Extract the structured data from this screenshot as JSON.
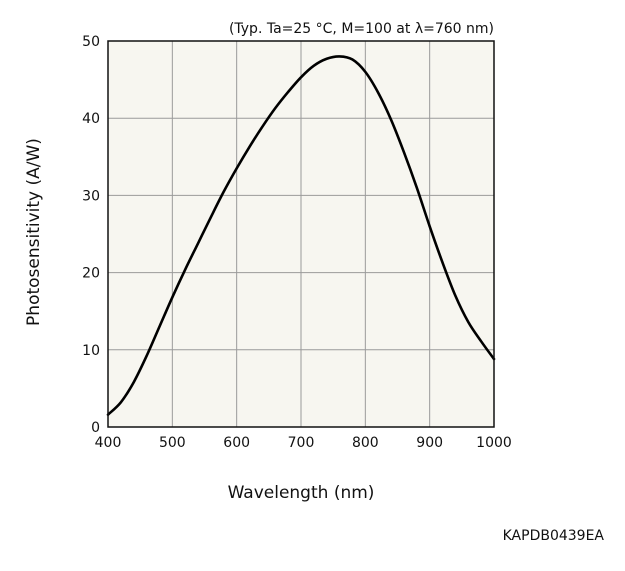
{
  "chart_data": {
    "type": "line",
    "condition_note": "(Typ. Ta=25 °C, M=100 at λ=760 nm)",
    "xlabel": "Wavelength (nm)",
    "ylabel": "Photosensitivity (A/W)",
    "xlim": [
      400,
      1000
    ],
    "ylim": [
      0,
      50
    ],
    "x_ticks": [
      "400",
      "500",
      "600",
      "700",
      "800",
      "900",
      "1000"
    ],
    "y_ticks": [
      "0",
      "10",
      "20",
      "30",
      "40",
      "50"
    ],
    "grid": true,
    "background_color": "#f7f6f0",
    "line_color": "#000000",
    "series": [
      {
        "x": [
          400,
          420,
          440,
          460,
          480,
          500,
          520,
          540,
          560,
          580,
          600,
          620,
          640,
          660,
          680,
          700,
          720,
          740,
          760,
          780,
          800,
          820,
          840,
          860,
          880,
          900,
          920,
          940,
          960,
          980,
          1000
        ],
        "values": [
          1.6,
          3.2,
          5.8,
          9.2,
          13.0,
          16.8,
          20.4,
          23.8,
          27.2,
          30.5,
          33.5,
          36.3,
          38.9,
          41.3,
          43.4,
          45.3,
          46.8,
          47.7,
          48.0,
          47.6,
          46.0,
          43.3,
          39.8,
          35.6,
          31.0,
          26.0,
          21.3,
          17.0,
          13.6,
          11.1,
          8.8
        ]
      }
    ]
  },
  "figure_code": "KAPDB0439EA"
}
